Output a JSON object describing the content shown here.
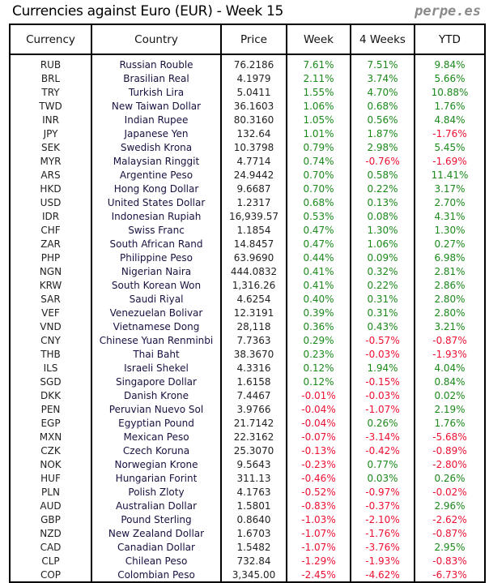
{
  "title": "Currencies against Euro (EUR) - Week 15",
  "brand": "perpe.es",
  "colors": {
    "positive": "#1b8a1b",
    "negative": "#ee1133"
  },
  "headers": [
    "Currency",
    "Country",
    "Price",
    "Week",
    "4 Weeks",
    "YTD"
  ],
  "rows": [
    [
      "RUB",
      "Russian Rouble",
      "76.2186",
      "7.61%",
      "7.51%",
      "9.84%"
    ],
    [
      "BRL",
      "Brasilian Real",
      "4.1979",
      "2.11%",
      "3.74%",
      "5.66%"
    ],
    [
      "TRY",
      "Turkish Lira",
      "5.0411",
      "1.55%",
      "4.70%",
      "10.88%"
    ],
    [
      "TWD",
      "New Taiwan Dollar",
      "36.1603",
      "1.06%",
      "0.68%",
      "1.76%"
    ],
    [
      "INR",
      "Indian Rupee",
      "80.3160",
      "1.05%",
      "0.56%",
      "4.84%"
    ],
    [
      "JPY",
      "Japanese Yen",
      "132.64",
      "1.01%",
      "1.87%",
      "-1.76%"
    ],
    [
      "SEK",
      "Swedish Krona",
      "10.3798",
      "0.79%",
      "2.98%",
      "5.45%"
    ],
    [
      "MYR",
      "Malaysian Ringgit",
      "4.7714",
      "0.74%",
      "-0.76%",
      "-1.69%"
    ],
    [
      "ARS",
      "Argentine Peso",
      "24.9442",
      "0.70%",
      "0.58%",
      "11.41%"
    ],
    [
      "HKD",
      "Hong Kong Dollar",
      "9.6687",
      "0.70%",
      "0.22%",
      "3.17%"
    ],
    [
      "USD",
      "United States Dollar",
      "1.2317",
      "0.68%",
      "0.13%",
      "2.70%"
    ],
    [
      "IDR",
      "Indonesian Rupiah",
      "16,939.57",
      "0.53%",
      "0.08%",
      "4.31%"
    ],
    [
      "CHF",
      "Swiss Franc",
      "1.1854",
      "0.47%",
      "1.30%",
      "1.30%"
    ],
    [
      "ZAR",
      "South African Rand",
      "14.8457",
      "0.47%",
      "1.06%",
      "0.27%"
    ],
    [
      "PHP",
      "Philippine Peso",
      "63.9690",
      "0.44%",
      "0.09%",
      "6.98%"
    ],
    [
      "NGN",
      "Nigerian Naira",
      "444.0832",
      "0.41%",
      "0.32%",
      "2.81%"
    ],
    [
      "KRW",
      "South Korean Won",
      "1,316.26",
      "0.41%",
      "0.22%",
      "2.86%"
    ],
    [
      "SAR",
      "Saudi Riyal",
      "4.6254",
      "0.40%",
      "0.31%",
      "2.80%"
    ],
    [
      "VEF",
      "Venezuelan Bolivar",
      "12.3191",
      "0.39%",
      "0.31%",
      "2.80%"
    ],
    [
      "VND",
      "Vietnamese Dong",
      "28,118",
      "0.36%",
      "0.43%",
      "3.21%"
    ],
    [
      "CNY",
      "Chinese Yuan Renminbi",
      "7.7363",
      "0.29%",
      "-0.57%",
      "-0.87%"
    ],
    [
      "THB",
      "Thai Baht",
      "38.3670",
      "0.23%",
      "-0.03%",
      "-1.93%"
    ],
    [
      "ILS",
      "Israeli Shekel",
      "4.3316",
      "0.12%",
      "1.94%",
      "4.04%"
    ],
    [
      "SGD",
      "Singapore Dollar",
      "1.6158",
      "0.12%",
      "-0.15%",
      "0.84%"
    ],
    [
      "DKK",
      "Danish Krone",
      "7.4467",
      "-0.01%",
      "-0.03%",
      "0.02%"
    ],
    [
      "PEN",
      "Peruvian Nuevo Sol",
      "3.9766",
      "-0.04%",
      "-1.07%",
      "2.19%"
    ],
    [
      "EGP",
      "Egyptian Pound",
      "21.7142",
      "-0.04%",
      "0.26%",
      "1.76%"
    ],
    [
      "MXN",
      "Mexican Peso",
      "22.3162",
      "-0.07%",
      "-3.14%",
      "-5.68%"
    ],
    [
      "CZK",
      "Czech Koruna",
      "25.3070",
      "-0.13%",
      "-0.42%",
      "-0.89%"
    ],
    [
      "NOK",
      "Norwegian Krone",
      "9.5643",
      "-0.23%",
      "0.77%",
      "-2.80%"
    ],
    [
      "HUF",
      "Hungarian Forint",
      "311.13",
      "-0.46%",
      "0.03%",
      "0.26%"
    ],
    [
      "PLN",
      "Polish Zloty",
      "4.1763",
      "-0.52%",
      "-0.97%",
      "-0.02%"
    ],
    [
      "AUD",
      "Australian Dollar",
      "1.5801",
      "-0.83%",
      "-0.37%",
      "2.96%"
    ],
    [
      "GBP",
      "Pound Sterling",
      "0.8640",
      "-1.03%",
      "-2.10%",
      "-2.62%"
    ],
    [
      "NZD",
      "New Zealand Dollar",
      "1.6703",
      "-1.07%",
      "-1.76%",
      "-0.87%"
    ],
    [
      "CAD",
      "Canadian Dollar",
      "1.5482",
      "-1.07%",
      "-3.76%",
      "2.95%"
    ],
    [
      "CLP",
      "Chilean Peso",
      "732.84",
      "-1.29%",
      "-1.93%",
      "-0.83%"
    ],
    [
      "COP",
      "Colombian Peso",
      "3,345.00",
      "-2.45%",
      "-4.62%",
      "-6.73%"
    ]
  ]
}
